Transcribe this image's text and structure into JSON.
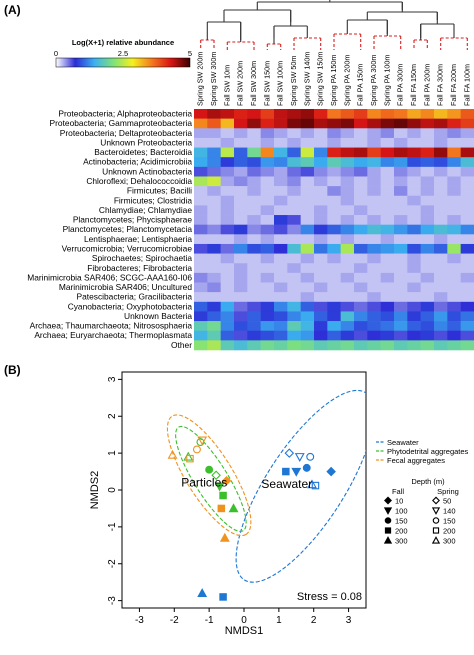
{
  "chart_data": [
    {
      "type": "heatmap",
      "panel_label": "(A)",
      "colorbar": {
        "title": "Log(X+1) relative abundance",
        "ticks": [
          "0",
          "2.5",
          "5"
        ],
        "range": [
          0,
          5
        ],
        "colors": [
          "#ffffff",
          "#2b2bd6",
          "#3cb0f0",
          "#7fe27a",
          "#f5f01e",
          "#f47a1e",
          "#d81515",
          "#3a0000"
        ]
      },
      "columns": [
        "Spring SW 200m",
        "Spring SW 300m",
        "Fall SW 10m",
        "Fall SW 200m",
        "Fall SW 300m",
        "Fall SW 150m",
        "Fall SW 100m",
        "Spring SW 50m",
        "Spring SW 140m",
        "Spring SW 150m",
        "Spring PA 150m",
        "Spring PA 200m",
        "Fall PA 150m",
        "Spring PA 300m",
        "Spring PA 100m",
        "Fall PA 300m",
        "Fall FA 150m",
        "Fall PA 200m",
        "Fall FA 300m",
        "Fall FA 200m",
        "Fall FA 100m"
      ],
      "rows": [
        "Proteobacteria; Alphaproteobacteria",
        "Proteobacteria; Gammaproteobacteria",
        "Proteobacteria; Deltaproteobacteria",
        "Unknown Proteobacteria",
        "Bacteroidetes; Bacteroidia",
        "Actinobacteria; Acidimicrobiia",
        "Unknown Actinobacteria",
        "Chloroflexi; Dehalococcoidia",
        "Firmicutes; Bacilli",
        "Firmicutes; Clostridia",
        "Chlamydiae; Chlamydiae",
        "Planctomycetes; Phycisphaerae",
        "Planctomycetes; Planctomycetacia",
        "Lentisphaerae; Lentisphaeria",
        "Verrucomicrobia; Verrucomicrobiae",
        "Spirochaetes; Spirochaetia",
        "Fibrobacteres; Fibrobacteria",
        "Marinimicrobia SAR406; SCGC-AAA160-I06",
        "Marinimicrobia SAR406; Uncultured",
        "Patescibacteria; Gracilibacteria",
        "Cyanobacteria; Oxyphotobacteria",
        "Unknown Bacteria",
        "Archaea; Thaumarchaeota; Nitrososphaeria",
        "Archaea; Euryarchaeota; Thermoplasmata",
        "Other"
      ],
      "values": [
        [
          4.3,
          4.5,
          4.4,
          4.2,
          4.3,
          4.0,
          4.4,
          4.5,
          4.6,
          4.2,
          3.6,
          3.8,
          4.0,
          3.5,
          3.7,
          3.6,
          3.3,
          3.5,
          3.2,
          3.4,
          3.8
        ],
        [
          3.5,
          3.8,
          3.2,
          4.3,
          4.6,
          4.2,
          4.4,
          4.7,
          4.8,
          4.5,
          4.6,
          4.7,
          4.3,
          4.5,
          4.7,
          4.8,
          4.6,
          4.4,
          4.5,
          4.2,
          4.0
        ],
        [
          0.3,
          0.3,
          0.2,
          0.3,
          0.2,
          0.4,
          0.3,
          0.2,
          0.3,
          0.2,
          0.4,
          0.3,
          0.2,
          0.3,
          0.4,
          0.2,
          0.3,
          0.2,
          0.3,
          0.4,
          0.3
        ],
        [
          0.2,
          0.2,
          0.3,
          0.2,
          0.2,
          0.3,
          0.2,
          0.3,
          0.2,
          0.2,
          0.3,
          0.2,
          0.2,
          0.3,
          0.2,
          0.3,
          0.2,
          0.2,
          0.3,
          0.2,
          0.2
        ],
        [
          1.5,
          1.2,
          2.5,
          1.0,
          2.0,
          3.5,
          1.5,
          1.0,
          2.6,
          1.2,
          4.2,
          4.4,
          4.5,
          4.0,
          4.3,
          4.5,
          4.4,
          4.2,
          4.6,
          3.6,
          4.5
        ],
        [
          1.4,
          1.2,
          0.8,
          1.0,
          0.9,
          1.3,
          1.2,
          1.6,
          1.8,
          1.4,
          1.8,
          1.6,
          1.4,
          1.5,
          1.2,
          1.3,
          0.9,
          1.0,
          0.9,
          1.2,
          1.6
        ],
        [
          0.6,
          0.5,
          0.4,
          0.3,
          0.5,
          0.4,
          0.3,
          0.5,
          0.6,
          0.4,
          0.3,
          0.4,
          0.5,
          0.3,
          0.2,
          0.4,
          0.3,
          0.2,
          0.3,
          0.2,
          0.3
        ],
        [
          2.4,
          2.6,
          0.3,
          0.4,
          0.3,
          0.2,
          0.3,
          0.4,
          0.2,
          0.3,
          0.2,
          0.3,
          0.2,
          0.3,
          0.2,
          0.3,
          0.2,
          0.3,
          0.2,
          0.3,
          0.2
        ],
        [
          0.2,
          0.3,
          0.2,
          0.2,
          0.3,
          0.2,
          0.2,
          0.3,
          0.2,
          0.2,
          0.4,
          0.3,
          0.2,
          0.3,
          0.2,
          0.4,
          0.2,
          0.3,
          0.2,
          0.3,
          0.2
        ],
        [
          0.2,
          0.2,
          0.3,
          0.2,
          0.2,
          0.2,
          0.3,
          0.2,
          0.2,
          0.2,
          0.2,
          0.3,
          0.2,
          0.2,
          0.2,
          0.2,
          0.3,
          0.2,
          0.2,
          0.2,
          0.2
        ],
        [
          0.3,
          0.2,
          0.3,
          0.2,
          0.2,
          0.3,
          0.2,
          0.2,
          0.2,
          0.3,
          0.2,
          0.2,
          0.3,
          0.2,
          0.2,
          0.2,
          0.2,
          0.3,
          0.2,
          0.2,
          0.2
        ],
        [
          0.3,
          0.2,
          0.3,
          0.2,
          0.3,
          0.2,
          0.8,
          0.6,
          0.2,
          0.3,
          0.2,
          0.3,
          0.2,
          0.3,
          0.2,
          0.3,
          0.2,
          0.3,
          0.2,
          0.3,
          0.2
        ],
        [
          0.5,
          0.4,
          0.6,
          0.8,
          0.4,
          0.5,
          0.6,
          0.4,
          1.2,
          0.8,
          1.0,
          1.2,
          1.4,
          1.6,
          1.5,
          1.3,
          1.1,
          1.4,
          1.6,
          1.5,
          1.2
        ],
        [
          0.2,
          0.2,
          0.2,
          0.3,
          0.2,
          0.3,
          0.2,
          0.2,
          0.2,
          0.3,
          0.2,
          0.3,
          0.2,
          0.2,
          0.3,
          0.2,
          0.2,
          0.2,
          0.3,
          0.2,
          0.2
        ],
        [
          0.6,
          0.8,
          0.5,
          1.2,
          0.9,
          1.0,
          0.7,
          1.6,
          2.4,
          1.1,
          1.4,
          2.4,
          1.0,
          1.2,
          1.3,
          1.4,
          0.9,
          1.2,
          1.0,
          2.3,
          0.8
        ],
        [
          0.2,
          0.2,
          0.3,
          0.2,
          0.2,
          0.3,
          0.2,
          0.2,
          0.3,
          0.2,
          0.3,
          0.2,
          0.2,
          0.3,
          0.2,
          0.2,
          0.3,
          0.2,
          0.2,
          0.3,
          0.2
        ],
        [
          0.2,
          0.2,
          0.2,
          0.3,
          0.2,
          0.2,
          0.2,
          0.3,
          0.2,
          0.2,
          0.2,
          0.2,
          0.3,
          0.2,
          0.2,
          0.2,
          0.3,
          0.2,
          0.2,
          0.2,
          0.2
        ],
        [
          0.4,
          0.3,
          0.2,
          0.3,
          0.2,
          0.3,
          0.2,
          0.2,
          0.3,
          0.2,
          0.2,
          0.3,
          0.2,
          0.2,
          0.3,
          0.2,
          0.2,
          0.3,
          0.2,
          0.2,
          0.3
        ],
        [
          0.3,
          0.4,
          0.2,
          0.3,
          0.2,
          0.2,
          0.3,
          0.2,
          0.2,
          0.3,
          0.2,
          0.2,
          0.3,
          0.2,
          0.2,
          0.2,
          0.3,
          0.2,
          0.2,
          0.2,
          0.2
        ],
        [
          0.2,
          0.2,
          0.2,
          0.2,
          0.2,
          0.2,
          0.2,
          0.2,
          0.3,
          0.2,
          0.2,
          0.2,
          0.2,
          0.3,
          0.2,
          0.2,
          0.2,
          0.2,
          0.3,
          0.2,
          0.2
        ],
        [
          1.0,
          0.8,
          1.4,
          0.5,
          0.6,
          0.8,
          1.2,
          1.5,
          1.0,
          0.6,
          0.8,
          0.6,
          0.5,
          0.6,
          0.7,
          0.5,
          0.6,
          0.8,
          0.5,
          0.6,
          0.7
        ],
        [
          0.8,
          1.0,
          1.2,
          0.6,
          1.0,
          0.8,
          0.9,
          1.2,
          1.4,
          1.0,
          0.8,
          1.6,
          1.2,
          1.0,
          0.9,
          1.2,
          0.8,
          1.0,
          1.3,
          0.9,
          1.1
        ],
        [
          1.8,
          2.0,
          1.2,
          0.9,
          1.0,
          1.3,
          1.2,
          1.8,
          1.5,
          0.8,
          1.4,
          1.2,
          0.9,
          1.0,
          1.1,
          1.3,
          1.0,
          0.9,
          1.2,
          1.0,
          1.3
        ],
        [
          1.5,
          1.8,
          1.0,
          0.6,
          0.8,
          0.9,
          1.0,
          1.4,
          1.3,
          0.7,
          1.0,
          0.8,
          0.6,
          0.7,
          0.8,
          0.6,
          0.7,
          0.8,
          0.6,
          0.7,
          0.6
        ],
        [
          2.2,
          2.4,
          1.8,
          1.6,
          1.8,
          2.0,
          1.9,
          2.1,
          2.0,
          1.8,
          1.9,
          2.0,
          1.8,
          1.9,
          2.0,
          1.8,
          1.9,
          2.0,
          1.8,
          1.9,
          2.0
        ]
      ]
    },
    {
      "type": "scatter",
      "panel_label": "(B)",
      "xlabel": "NMDS1",
      "ylabel": "NMDS2",
      "xlim": [
        -3.5,
        3.5
      ],
      "ylim": [
        -3.2,
        3.2
      ],
      "xticks": [
        "-3",
        "-2",
        "-1",
        "0",
        "1",
        "2",
        "3"
      ],
      "yticks": [
        "-3",
        "-2",
        "-1",
        "0",
        "1",
        "2",
        "3"
      ],
      "stress_text": "Stress = 0.08",
      "annotations": [
        "Particles",
        "Seawater"
      ],
      "legend": {
        "position": "right",
        "groups": [
          {
            "name": "Seawater",
            "color": "#1f77d4"
          },
          {
            "name": "Phytodetrital aggregates",
            "color": "#3cbf2c"
          },
          {
            "name": "Fecal aggregates",
            "color": "#f0921e"
          }
        ],
        "depth_title": "Depth (m)",
        "season_titles": [
          "Fall",
          "Spring"
        ],
        "fall_depths": [
          "10",
          "100",
          "150",
          "200",
          "300"
        ],
        "spring_depths": [
          "50",
          "140",
          "150",
          "200",
          "300"
        ]
      },
      "ellipses": [
        {
          "group": "Seawater",
          "color": "#1f77d4",
          "cx": 1.75,
          "cy": 0.1,
          "rx": 3.2,
          "ry": 1.05,
          "angle": 57
        },
        {
          "group": "Phytodetrital aggregates",
          "color": "#3cbf2c",
          "cx": -0.95,
          "cy": 0.3,
          "rx": 1.75,
          "ry": 0.45,
          "angle": -58
        },
        {
          "group": "Fecal aggregates",
          "color": "#f0921e",
          "cx": -1.0,
          "cy": 0.4,
          "rx": 2.0,
          "ry": 0.62,
          "angle": -58
        }
      ],
      "points": [
        {
          "group": "Seawater",
          "season": "Fall",
          "depth": "10",
          "x": 2.5,
          "y": 0.5
        },
        {
          "group": "Seawater",
          "season": "Fall",
          "depth": "100",
          "x": 1.5,
          "y": 0.5
        },
        {
          "group": "Seawater",
          "season": "Fall",
          "depth": "150",
          "x": 1.8,
          "y": 0.6
        },
        {
          "group": "Seawater",
          "season": "Fall",
          "depth": "200",
          "x": 1.2,
          "y": 0.5
        },
        {
          "group": "Seawater",
          "season": "Spring",
          "depth": "50",
          "x": 1.3,
          "y": 1.0
        },
        {
          "group": "Seawater",
          "season": "Spring",
          "depth": "140",
          "x": 1.6,
          "y": 0.9
        },
        {
          "group": "Seawater",
          "season": "Spring",
          "depth": "150",
          "x": 1.9,
          "y": 0.9
        },
        {
          "group": "Seawater",
          "season": "Spring",
          "depth": "200",
          "x": 2.05,
          "y": 0.12
        },
        {
          "group": "Seawater",
          "season": "Spring",
          "depth": "300",
          "x": 1.95,
          "y": 0.15
        },
        {
          "group": "Seawater",
          "season": "Fall",
          "depth": "300",
          "x": -1.2,
          "y": -2.8
        },
        {
          "group": "Seawater",
          "season": "Fall",
          "depth": "200",
          "x": -0.6,
          "y": -2.9
        },
        {
          "group": "Phytodetrital aggregates",
          "season": "Fall",
          "depth": "150",
          "x": -1.0,
          "y": 0.55
        },
        {
          "group": "Phytodetrital aggregates",
          "season": "Fall",
          "depth": "200",
          "x": -0.6,
          "y": -0.15
        },
        {
          "group": "Phytodetrital aggregates",
          "season": "Fall",
          "depth": "300",
          "x": -0.3,
          "y": -0.5
        },
        {
          "group": "Phytodetrital aggregates",
          "season": "Fall",
          "depth": "100",
          "x": -0.7,
          "y": 0.1
        },
        {
          "group": "Phytodetrital aggregates",
          "season": "Spring",
          "depth": "50",
          "x": -0.8,
          "y": 0.4
        },
        {
          "group": "Phytodetrital aggregates",
          "season": "Spring",
          "depth": "150",
          "x": -1.25,
          "y": 1.3
        },
        {
          "group": "Phytodetrital aggregates",
          "season": "Spring",
          "depth": "300",
          "x": -1.6,
          "y": 0.9
        },
        {
          "group": "Fecal aggregates",
          "season": "Fall",
          "depth": "10",
          "x": -0.5,
          "y": 0.25
        },
        {
          "group": "Fecal aggregates",
          "season": "Fall",
          "depth": "200",
          "x": -0.65,
          "y": -0.5
        },
        {
          "group": "Fecal aggregates",
          "season": "Fall",
          "depth": "300",
          "x": -0.55,
          "y": -1.3
        },
        {
          "group": "Fecal aggregates",
          "season": "Spring",
          "depth": "150",
          "x": -1.35,
          "y": 1.1
        },
        {
          "group": "Fecal aggregates",
          "season": "Spring",
          "depth": "200",
          "x": -1.55,
          "y": 0.85
        },
        {
          "group": "Fecal aggregates",
          "season": "Spring",
          "depth": "300",
          "x": -2.05,
          "y": 0.95
        },
        {
          "group": "Fecal aggregates",
          "season": "Spring",
          "depth": "140",
          "x": -1.2,
          "y": 1.35
        }
      ]
    }
  ]
}
